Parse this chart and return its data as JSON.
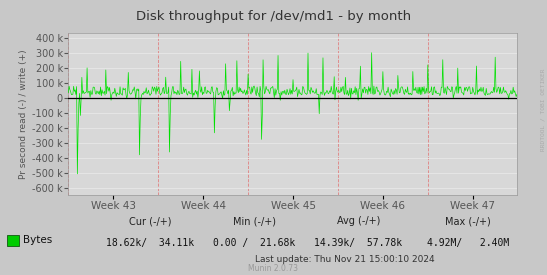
{
  "title": "Disk throughput for /dev/md1 - by month",
  "ylabel": "Pr second read (-) / write (+)",
  "xlabel_ticks": [
    "Week 43",
    "Week 44",
    "Week 45",
    "Week 46",
    "Week 47"
  ],
  "ylim": [
    -650000,
    430000
  ],
  "yticks": [
    -600000,
    -500000,
    -400000,
    -300000,
    -200000,
    -100000,
    0,
    100000,
    200000,
    300000,
    400000
  ],
  "bg_color": "#c8c8c8",
  "plot_bg_color": "#d8d8d8",
  "hgrid_color": "#e8e8e8",
  "vgrid_color": "#e08080",
  "line_color": "#00e000",
  "zero_line_color": "#000000",
  "right_label": "RRDTOOL / TOBI OETIKER",
  "legend_label": "Bytes",
  "legend_color": "#00cc00",
  "cur_label": "Cur (-/+)",
  "min_label": "Min (-/+)",
  "avg_label": "Avg (-/+)",
  "max_label": "Max (-/+)",
  "cur_val": "18.62k/  34.11k",
  "min_val": "0.00 /  21.68k",
  "avg_val": "14.39k/  57.78k",
  "max_val": "4.92M/   2.40M",
  "last_update": "Last update: Thu Nov 21 15:00:10 2024",
  "munin_label": "Munin 2.0.73",
  "title_color": "#333333",
  "label_color": "#555555",
  "tick_color": "#555555",
  "n_points": 600,
  "seed": 42
}
